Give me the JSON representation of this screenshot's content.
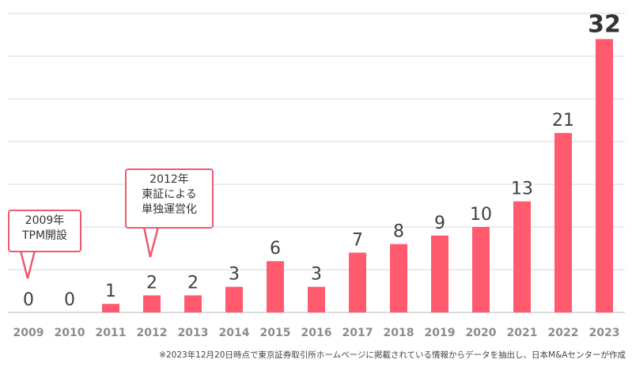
{
  "chart_data": {
    "type": "bar",
    "categories": [
      "2009",
      "2010",
      "2011",
      "2012",
      "2013",
      "2014",
      "2015",
      "2016",
      "2017",
      "2018",
      "2019",
      "2020",
      "2021",
      "2022",
      "2023"
    ],
    "values": [
      0,
      0,
      1,
      2,
      2,
      3,
      6,
      3,
      7,
      8,
      9,
      10,
      13,
      21,
      32
    ],
    "ylim": [
      0,
      35
    ],
    "grid": true,
    "bar_color": "#ff5a6e",
    "title": "",
    "xlabel": "",
    "ylabel": ""
  },
  "annotations": {
    "a2009": {
      "line1": "2009年",
      "line2": "TPM開設"
    },
    "a2012": {
      "line1": "2012年",
      "line2": "東証による",
      "line3": "単独運営化"
    }
  },
  "source_note": "※2023年12月20日時点で東京証券取引所ホームページに掲載されている情報からデータを抽出し、日本M&Aセンターが作成",
  "colors": {
    "accent": "#ee5a70",
    "grid": "#d9d9d9",
    "label": "#404040",
    "tick": "#8c8c8c"
  }
}
